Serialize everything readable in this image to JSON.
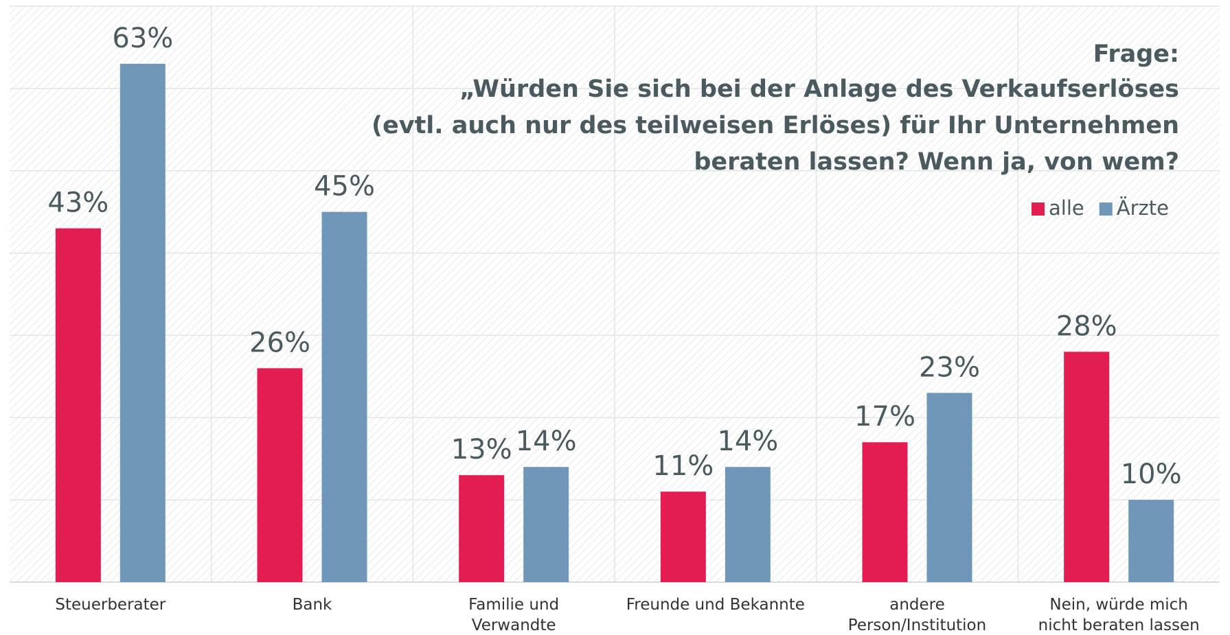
{
  "chart_data": {
    "type": "bar",
    "title": "Frage:",
    "subtitle": [
      "„Würden Sie sich bei der Anlage des Verkaufserlöses",
      "(evtl. auch nur des teilweisen Erlöses) für Ihr Unternehmen",
      "beraten lassen? Wenn ja, von wem?"
    ],
    "categories": [
      "Steuerberater",
      "Bank",
      "Familie und Verwandte",
      "Freunde und Bekannte",
      "andere Person/Institution",
      "Nein, würde mich nicht beraten lassen"
    ],
    "series": [
      {
        "name": "alle",
        "color": "#e31d52",
        "values": [
          43,
          26,
          13,
          11,
          17,
          28
        ],
        "value_labels": [
          "43%",
          "26%",
          "13%",
          "11%",
          "17%",
          "28%"
        ]
      },
      {
        "name": "Ärzte",
        "color": "#7097ba",
        "values": [
          63,
          45,
          14,
          14,
          23,
          10
        ],
        "value_labels": [
          "63%",
          "45%",
          "14%",
          "14%",
          "23%",
          "10%"
        ]
      }
    ],
    "ylim": [
      0,
      70
    ],
    "yticks": [
      0,
      10,
      20,
      30,
      40,
      50,
      60,
      70
    ],
    "grid": true,
    "legend": "top-right"
  }
}
